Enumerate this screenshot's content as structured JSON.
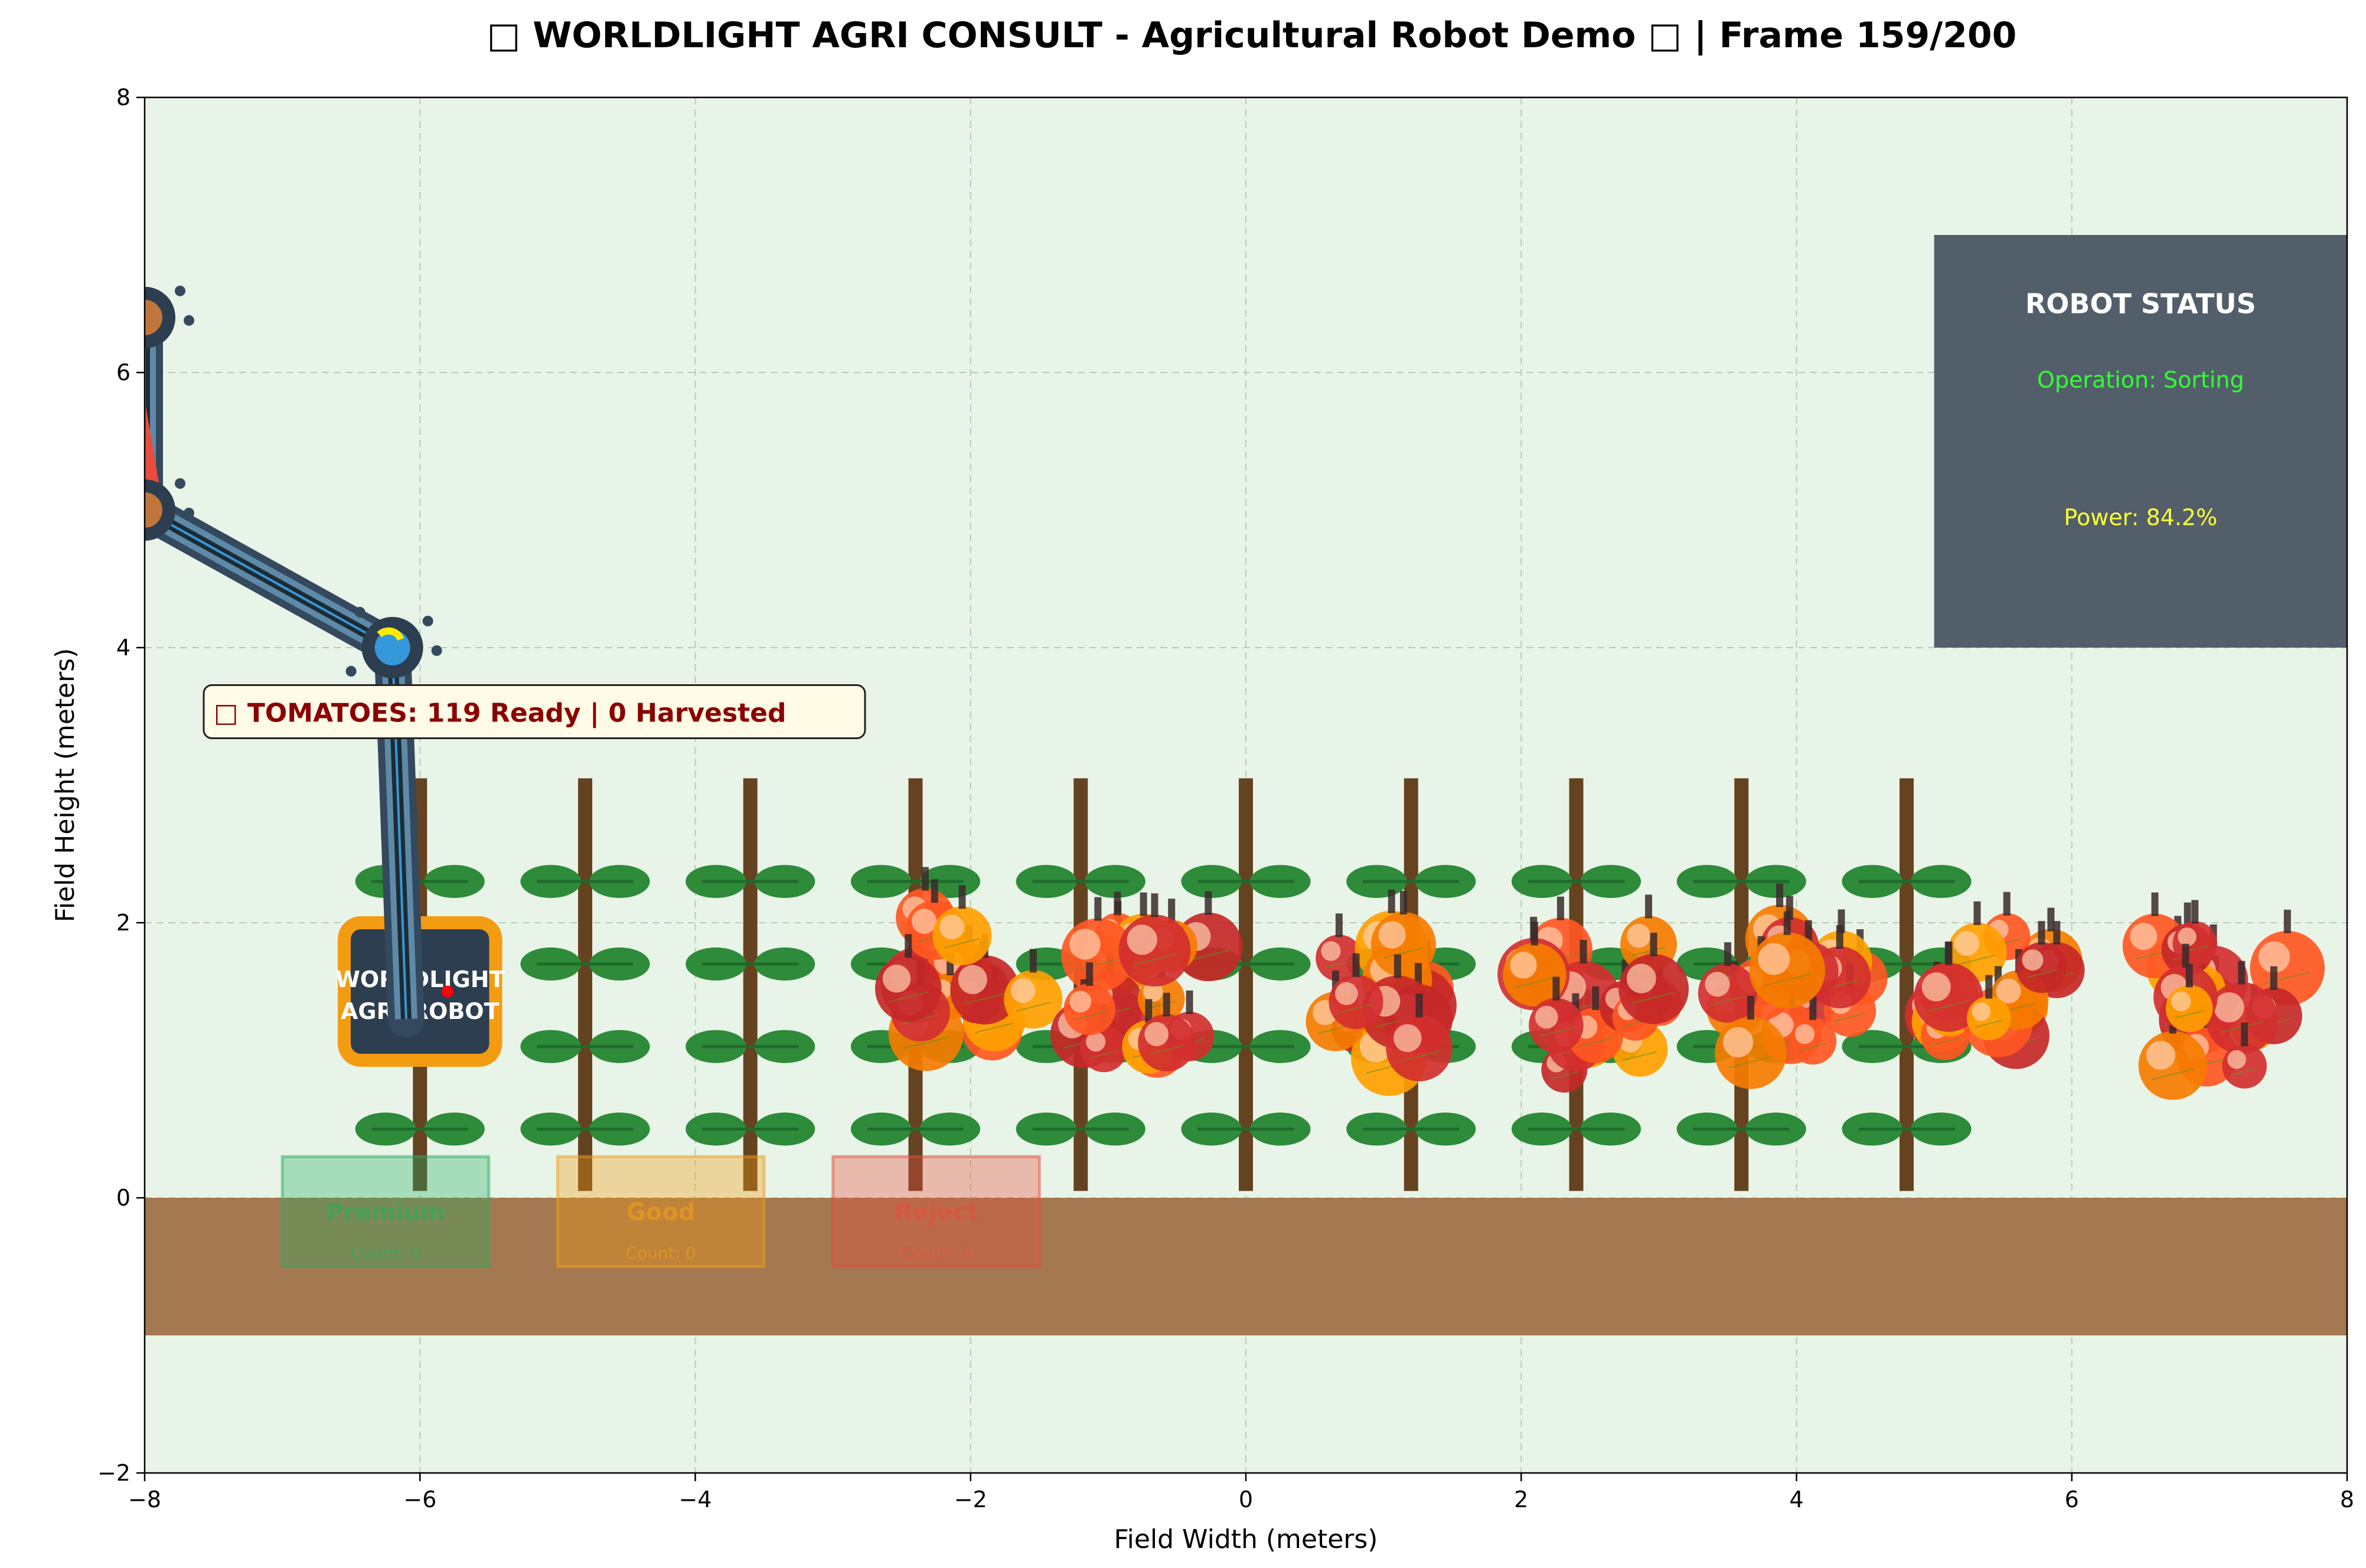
{
  "chart_data": {
    "type": "scatter",
    "title": "\u0000 WORLDLIGHT AGRI CONSULT - Agricultural Robot Demo \u0000 | Frame 159/200",
    "title_display": "□ WORLDLIGHT AGRI CONSULT - Agricultural Robot Demo □ | Frame 159/200",
    "xlabel": "Field Width (meters)",
    "ylabel": "Field Height (meters)",
    "xlim": [
      -8,
      8
    ],
    "ylim": [
      -2,
      8
    ],
    "xticks": [
      -8,
      -6,
      -4,
      -2,
      0,
      2,
      4,
      6,
      8
    ],
    "yticks": [
      -2,
      0,
      2,
      4,
      6,
      8
    ],
    "xtick_labels": [
      "−8",
      "−6",
      "−4",
      "−2",
      "0",
      "2",
      "4",
      "6",
      "8"
    ],
    "ytick_labels": [
      "−2",
      "0",
      "2",
      "4",
      "6",
      "8"
    ],
    "grid": true,
    "colors": {
      "field_bg": "#e8f4e8",
      "soil": "#a47850",
      "stake": "#654321",
      "leaf": "#2e8b3a",
      "status_panel": "#525f6b",
      "ripe": "#d32f2f",
      "orange": "#ff5722",
      "yellow": "#ffa000",
      "premium": "#27ae60",
      "good": "#f39c12",
      "reject": "#e74c3c"
    },
    "plants_x": [
      -6,
      -4.8,
      -3.6,
      -2.4,
      -1.2,
      0,
      1.2,
      2.4,
      3.6,
      4.8
    ],
    "tomato_clusters": [
      {
        "x": -2.0,
        "y": 1.6,
        "spread": 0.5
      },
      {
        "x": -0.7,
        "y": 1.5,
        "spread": 0.5
      },
      {
        "x": 1.1,
        "y": 1.4,
        "spread": 0.5
      },
      {
        "x": 2.5,
        "y": 1.4,
        "spread": 0.55
      },
      {
        "x": 4.0,
        "y": 1.5,
        "spread": 0.5
      },
      {
        "x": 5.5,
        "y": 1.5,
        "spread": 0.5
      },
      {
        "x": 7.1,
        "y": 1.4,
        "spread": 0.5
      }
    ],
    "robot": {
      "label_line1": "WORLDLIGHT",
      "label_line2": "AGRI-ROBOT",
      "base_x": -6,
      "base_y": 1.5,
      "arm_joints": [
        [
          -6.1,
          1.3
        ],
        [
          -6.2,
          4.0
        ],
        [
          -8.0,
          5.0
        ],
        [
          -8.0,
          6.4
        ]
      ]
    },
    "tomato_counter": {
      "text": "□ TOMATOES: 119 Ready | 0 Harvested",
      "ready": 119,
      "harvested": 0
    },
    "sort_bins": [
      {
        "label": "Premium",
        "count_text": "Count: 0",
        "count": 0,
        "x": -7.0,
        "color": "#27ae60"
      },
      {
        "label": "Good",
        "count_text": "Count: 0",
        "count": 0,
        "x": -5.0,
        "color": "#f39c12"
      },
      {
        "label": "Reject",
        "count_text": "Count: 0",
        "count": 0,
        "x": -3.0,
        "color": "#e74c3c"
      }
    ],
    "status_panel": {
      "title": "ROBOT STATUS",
      "operation": "Operation: Sorting",
      "power": "Power: 84.2%",
      "power_value": 84.2
    }
  }
}
